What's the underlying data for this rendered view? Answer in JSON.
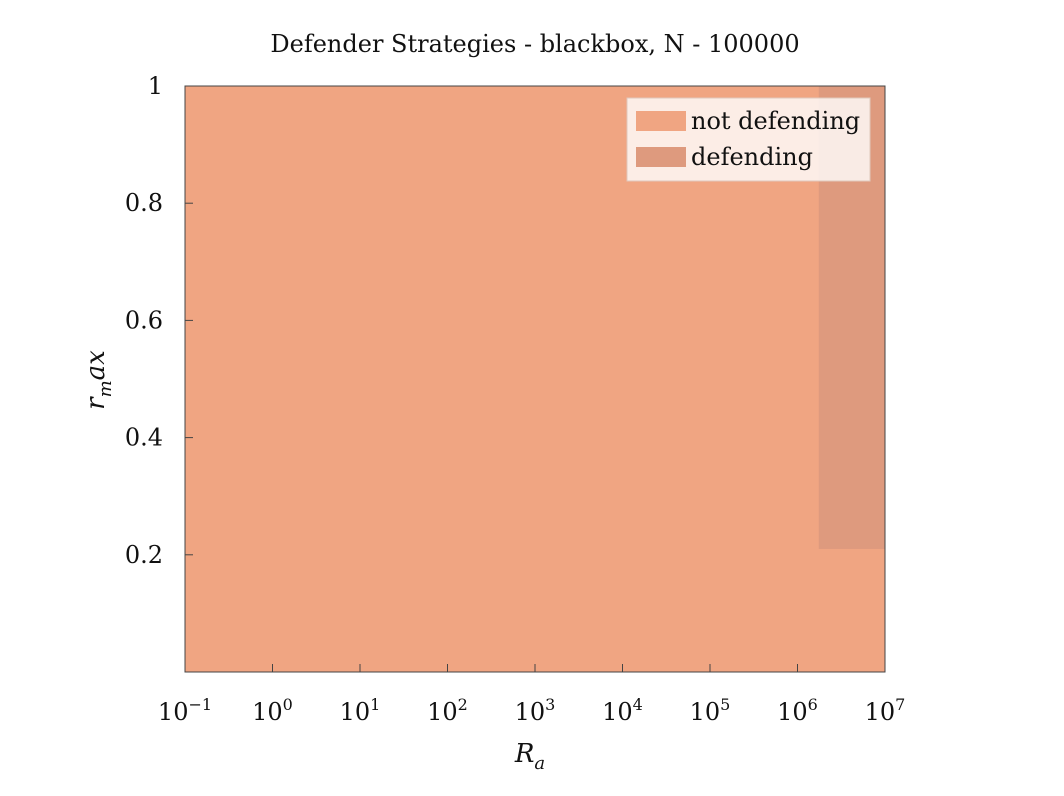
{
  "chart_data": {
    "type": "heatmap",
    "title": "Defender Strategies - blackbox, N - 100000",
    "xlabel": "R_a",
    "ylabel": "r_max",
    "x_scale": "log",
    "xlim": [
      0.1,
      10000000
    ],
    "ylim": [
      0,
      1
    ],
    "x_ticks": [
      {
        "value": 0.1,
        "base": "10",
        "exp": "−1"
      },
      {
        "value": 1,
        "base": "10",
        "exp": "0"
      },
      {
        "value": 10,
        "base": "10",
        "exp": "1"
      },
      {
        "value": 100,
        "base": "10",
        "exp": "2"
      },
      {
        "value": 1000,
        "base": "10",
        "exp": "3"
      },
      {
        "value": 10000,
        "base": "10",
        "exp": "4"
      },
      {
        "value": 100000,
        "base": "10",
        "exp": "5"
      },
      {
        "value": 1000000,
        "base": "10",
        "exp": "6"
      },
      {
        "value": 10000000,
        "base": "10",
        "exp": "7"
      }
    ],
    "y_ticks": [
      {
        "value": 0.2,
        "label": "0.2"
      },
      {
        "value": 0.4,
        "label": "0.4"
      },
      {
        "value": 0.6,
        "label": "0.6"
      },
      {
        "value": 0.8,
        "label": "0.8"
      },
      {
        "value": 1.0,
        "label": "1"
      }
    ],
    "regions": [
      {
        "category": "not defending",
        "x": [
          0.1,
          10000000
        ],
        "y": [
          0,
          1
        ]
      },
      {
        "category": "defending",
        "x": [
          1750000,
          10000000
        ],
        "y": [
          0.21,
          1
        ]
      }
    ],
    "legend": {
      "position": "top-right",
      "entries": [
        {
          "label": "not defending",
          "color": "#f0a582"
        },
        {
          "label": "defending",
          "color": "#de9a7e"
        }
      ]
    },
    "grid": false,
    "colors": {
      "not_defending": "#f0a582",
      "defending": "#de9a7e",
      "axis": "#444444"
    }
  }
}
